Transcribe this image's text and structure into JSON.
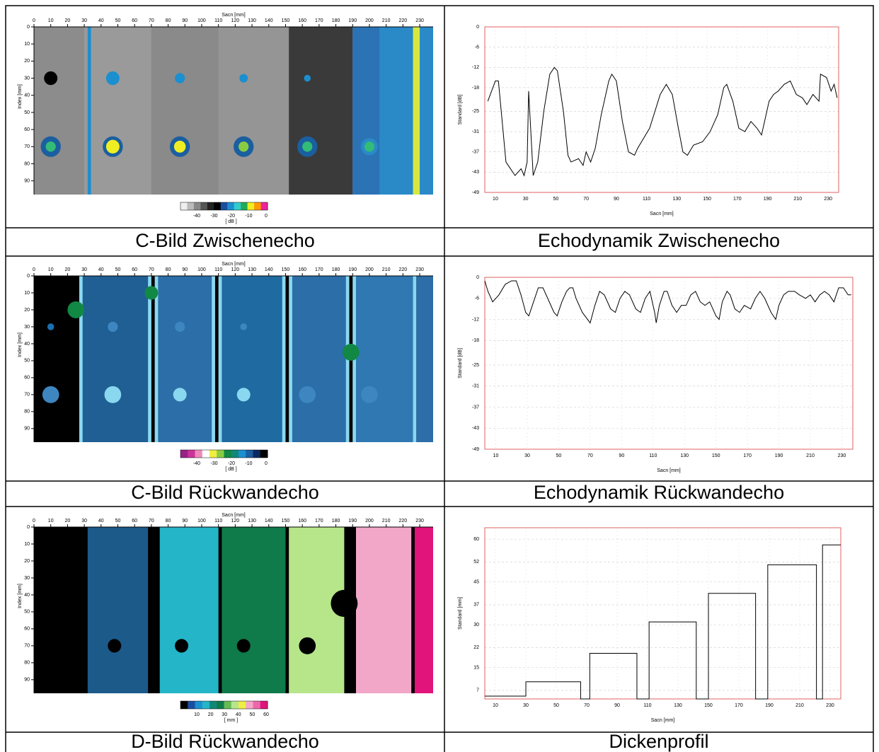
{
  "chart_data": [
    {
      "type": "heatmap",
      "caption": "C-Bild Zwischenecho",
      "xlabel": "Sacn [mm]",
      "ylabel": "Index [mm]",
      "xlim": [
        0,
        238
      ],
      "ylim": [
        0,
        98
      ],
      "xticks": [
        0,
        10,
        20,
        30,
        40,
        50,
        60,
        70,
        80,
        90,
        100,
        110,
        120,
        130,
        140,
        150,
        160,
        170,
        180,
        190,
        200,
        210,
        220,
        230
      ],
      "yticks": [
        0,
        10,
        20,
        30,
        40,
        50,
        60,
        70,
        80,
        90
      ],
      "colorbar_ticks": [
        -40,
        -30,
        -20,
        -10,
        0
      ],
      "colorbar_label": "[ dB ]",
      "colorbar_colors": [
        "#eeeeee",
        "#bbbbbb",
        "#888888",
        "#555555",
        "#222222",
        "#000000",
        "#1a4fa0",
        "#1b8fd0",
        "#33cccc",
        "#22aa55",
        "#eeee22",
        "#ff9900",
        "#ee2299"
      ]
    },
    {
      "type": "line",
      "caption": "Echodynamik Zwischenecho",
      "xlabel": "Sacn [mm]",
      "ylabel": "Standard [dB]",
      "color": "#000000",
      "xlim": [
        3,
        237
      ],
      "ylim": [
        -49,
        0
      ],
      "xticks": [
        10,
        30,
        50,
        70,
        90,
        110,
        130,
        150,
        170,
        190,
        210,
        230
      ],
      "yticks": [
        -49,
        -43,
        -37,
        -31,
        -25,
        -18,
        -12,
        -6,
        0
      ],
      "grid": true,
      "x": [
        5,
        10,
        12,
        17,
        20,
        23,
        27,
        29,
        31,
        32,
        35,
        38,
        42,
        46,
        49,
        51,
        55,
        58,
        60,
        65,
        68,
        70,
        73,
        76,
        80,
        85,
        87,
        90,
        94,
        98,
        102,
        104,
        112,
        119,
        123,
        127,
        131,
        134,
        137,
        141,
        147,
        152,
        157,
        161,
        163,
        167,
        171,
        175,
        179,
        183,
        186,
        188,
        191,
        194,
        197,
        201,
        205,
        209,
        213,
        216,
        220,
        224,
        225,
        229,
        232,
        234,
        236
      ],
      "values": [
        -22,
        -16,
        -16,
        -40,
        -42,
        -44,
        -42,
        -44,
        -40,
        -19,
        -44,
        -40,
        -25,
        -14,
        -12,
        -13,
        -25,
        -38,
        -40,
        -39,
        -41,
        -37,
        -40,
        -36,
        -26,
        -16,
        -14,
        -16,
        -28,
        -37,
        -38,
        -36,
        -30,
        -20,
        -17,
        -20,
        -30,
        -37,
        -38,
        -35,
        -34,
        -31,
        -26,
        -18,
        -17,
        -22,
        -30,
        -31,
        -28,
        -30,
        -32,
        -28,
        -22,
        -20,
        -19,
        -17,
        -16,
        -20,
        -21,
        -23,
        -20,
        -22,
        -14,
        -15,
        -19,
        -17,
        -21
      ]
    },
    {
      "type": "heatmap",
      "caption": "C-Bild Rückwandecho",
      "xlabel": "Sacn [mm]",
      "ylabel": "Index [mm]",
      "xlim": [
        0,
        238
      ],
      "ylim": [
        0,
        98
      ],
      "xticks": [
        0,
        10,
        20,
        30,
        40,
        50,
        60,
        70,
        80,
        90,
        100,
        110,
        120,
        130,
        140,
        150,
        160,
        170,
        180,
        190,
        200,
        210,
        220,
        230
      ],
      "yticks": [
        0,
        10,
        20,
        30,
        40,
        50,
        60,
        70,
        80,
        90
      ],
      "colorbar_ticks": [
        -40,
        -30,
        -20,
        -10,
        0
      ],
      "colorbar_label": "[ dB ]",
      "colorbar_colors": [
        "#992288",
        "#cc3399",
        "#ee88bb",
        "#ffffff",
        "#eeee44",
        "#88cc44",
        "#118844",
        "#118877",
        "#1b8fd0",
        "#1a5fa0",
        "#0a2a60",
        "#000000"
      ]
    },
    {
      "type": "line",
      "caption": "Echodynamik Rückwandecho",
      "xlabel": "Sacn [mm]",
      "ylabel": "Standard [dB]",
      "color": "#000000",
      "xlim": [
        3,
        237
      ],
      "ylim": [
        -49,
        0
      ],
      "xticks": [
        10,
        30,
        50,
        70,
        90,
        110,
        130,
        150,
        170,
        190,
        210,
        230
      ],
      "yticks": [
        -49,
        -43,
        -37,
        -31,
        -25,
        -18,
        -12,
        -6,
        0
      ],
      "grid": true,
      "x": [
        3,
        5,
        8,
        12,
        16,
        20,
        23,
        26,
        29,
        31,
        34,
        37,
        40,
        43,
        47,
        49,
        52,
        55,
        57,
        59,
        61,
        65,
        70,
        73,
        76,
        79,
        83,
        86,
        89,
        92,
        95,
        99,
        102,
        105,
        108,
        111,
        112,
        114,
        117,
        119,
        122,
        125,
        128,
        131,
        134,
        137,
        140,
        143,
        146,
        150,
        152,
        154,
        157,
        159,
        162,
        165,
        168,
        172,
        175,
        178,
        181,
        185,
        188,
        190,
        193,
        196,
        200,
        203,
        207,
        210,
        213,
        216,
        219,
        222,
        225,
        228,
        231,
        234,
        236
      ],
      "values": [
        -1,
        -4,
        -7,
        -5,
        -2,
        -1,
        -1,
        -5,
        -10,
        -11,
        -7,
        -3,
        -3,
        -6,
        -10,
        -11,
        -7,
        -4,
        -3,
        -3,
        -6,
        -10,
        -13,
        -8,
        -4,
        -5,
        -9,
        -10,
        -6,
        -4,
        -5,
        -9,
        -10,
        -6,
        -4,
        -10,
        -13,
        -8,
        -4,
        -4,
        -8,
        -10,
        -8,
        -8,
        -5,
        -4,
        -7,
        -8,
        -7,
        -11,
        -12,
        -7,
        -4,
        -5,
        -9,
        -10,
        -8,
        -9,
        -6,
        -4,
        -6,
        -10,
        -12,
        -8,
        -5,
        -4,
        -4,
        -5,
        -6,
        -5,
        -7,
        -5,
        -4,
        -5,
        -7,
        -3,
        -3,
        -5,
        -5
      ]
    },
    {
      "type": "heatmap",
      "caption": "D-Bild Rückwandecho",
      "xlabel": "Sacn [mm]",
      "ylabel": "Index [mm]",
      "xlim": [
        0,
        238
      ],
      "ylim": [
        0,
        98
      ],
      "xticks": [
        0,
        10,
        20,
        30,
        40,
        50,
        60,
        70,
        80,
        90,
        100,
        110,
        120,
        130,
        140,
        150,
        160,
        170,
        180,
        190,
        200,
        210,
        220,
        230
      ],
      "yticks": [
        0,
        10,
        20,
        30,
        40,
        50,
        60,
        70,
        80,
        90
      ],
      "colorbar_ticks": [
        10,
        20,
        30,
        40,
        50,
        60
      ],
      "colorbar_label": "[ mm ]",
      "colorbar_colors": [
        "#000000",
        "#1a4fa0",
        "#1b8fd0",
        "#25b5c8",
        "#118877",
        "#0f7a4a",
        "#66bb55",
        "#b7e68a",
        "#eeee44",
        "#f2a7c9",
        "#ee66aa",
        "#e0147a"
      ]
    },
    {
      "type": "line",
      "caption": "Dickenprofil",
      "xlabel": "Sacn [mm]",
      "ylabel": "Standard [mm]",
      "color": "#000000",
      "xlim": [
        3,
        237
      ],
      "ylim": [
        4,
        64
      ],
      "xticks": [
        10,
        30,
        50,
        70,
        90,
        110,
        130,
        150,
        170,
        190,
        210,
        230
      ],
      "yticks": [
        7,
        15,
        22,
        30,
        37,
        45,
        52,
        60
      ],
      "grid": true,
      "x": [
        3,
        30,
        30,
        66,
        66,
        72,
        72,
        103,
        103,
        111,
        111,
        142,
        142,
        150,
        150,
        181,
        181,
        189,
        189,
        221,
        221,
        225,
        225,
        237
      ],
      "values": [
        5,
        5,
        10,
        10,
        4,
        4,
        20,
        20,
        4,
        4,
        31,
        31,
        4,
        4,
        41,
        41,
        4,
        4,
        51,
        51,
        4,
        4,
        58,
        58
      ]
    }
  ]
}
